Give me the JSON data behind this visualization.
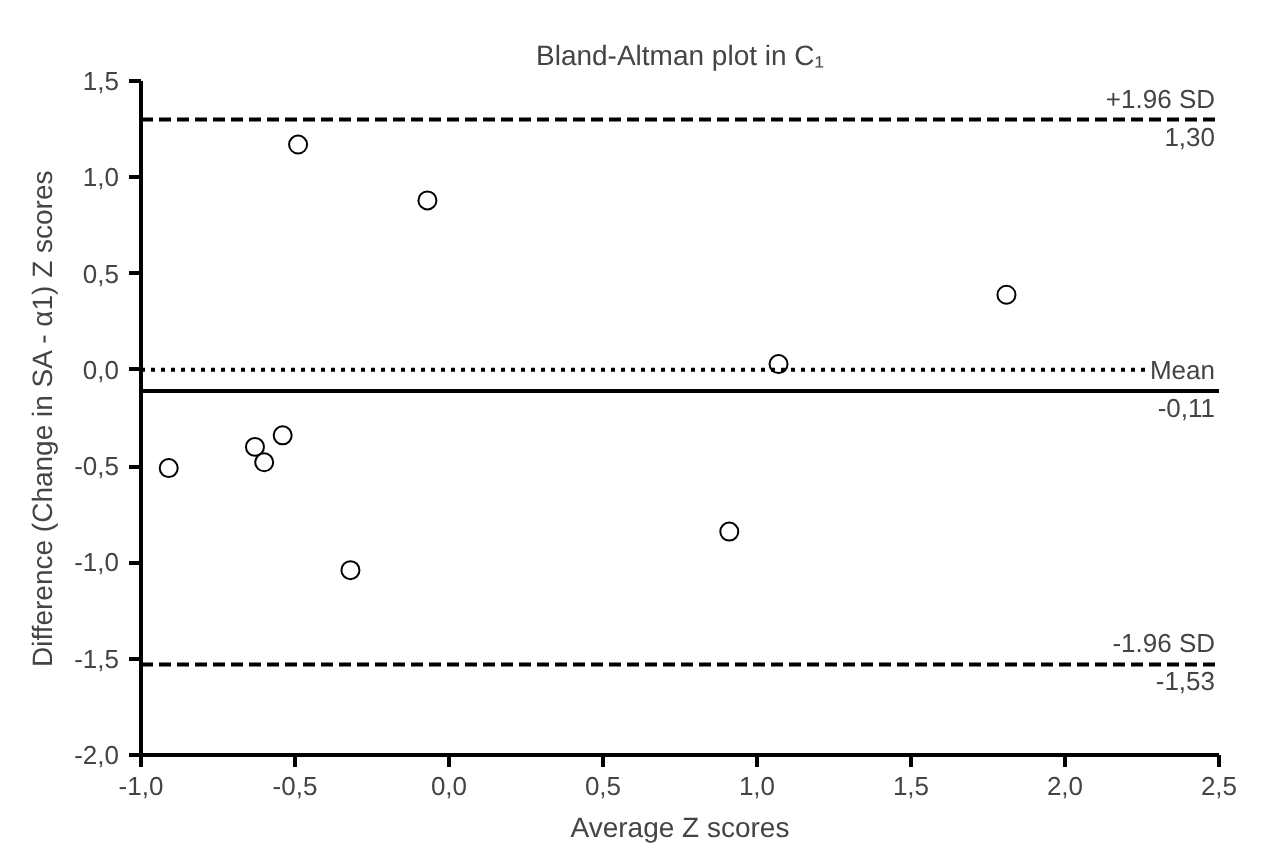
{
  "chart_data": {
    "type": "scatter",
    "title": "Bland-Altman plot in C₁",
    "xlabel": "Average Z scores",
    "ylabel": "Difference (Change in SA - α1) Z scores",
    "x": [
      -0.91,
      -0.63,
      -0.6,
      -0.54,
      -0.49,
      -0.32,
      -0.07,
      0.91,
      1.07,
      1.81
    ],
    "values": [
      -0.51,
      -0.4,
      -0.48,
      -0.34,
      1.17,
      -1.04,
      0.88,
      -0.84,
      0.03,
      0.39
    ],
    "color": "#000000",
    "marker": "circle",
    "grid": false,
    "xlim": [
      -1.0,
      2.5
    ],
    "ylim": [
      -2.0,
      1.5
    ],
    "xticks": [
      {
        "value": -1.0,
        "label": "-1,0"
      },
      {
        "value": -0.5,
        "label": "-0,5"
      },
      {
        "value": 0.0,
        "label": "0,0"
      },
      {
        "value": 0.5,
        "label": "0,5"
      },
      {
        "value": 1.0,
        "label": "1,0"
      },
      {
        "value": 1.5,
        "label": "1,5"
      },
      {
        "value": 2.0,
        "label": "2,0"
      },
      {
        "value": 2.5,
        "label": "2,5"
      }
    ],
    "yticks": [
      {
        "value": -2.0,
        "label": "-2,0"
      },
      {
        "value": -1.5,
        "label": "-1,5"
      },
      {
        "value": -1.0,
        "label": "-1,0"
      },
      {
        "value": -0.5,
        "label": "-0,5"
      },
      {
        "value": 0.0,
        "label": "0,0"
      },
      {
        "value": 0.5,
        "label": "0,5"
      },
      {
        "value": 1.0,
        "label": "1,0"
      },
      {
        "value": 1.5,
        "label": "1,5"
      }
    ],
    "ref_lines": [
      {
        "axis": "y",
        "value": 1.3,
        "label": "+1.96 SD",
        "line_style": "dashed",
        "color": "#000000"
      },
      {
        "axis": "y",
        "value": 0,
        "label": null,
        "line_style": "dotted",
        "color": "#000000"
      },
      {
        "axis": "y",
        "value": -0.11,
        "label": "Mean",
        "line_style": "solid",
        "color": "#000000"
      },
      {
        "axis": "y",
        "value": -1.53,
        "label": "-1.96 SD",
        "line_style": "dashed",
        "color": "#000000"
      }
    ],
    "annotations": [
      {
        "text": "1,30",
        "y": 1.3
      },
      {
        "text": "-0,11",
        "y": -0.11
      },
      {
        "text": "-1,53",
        "y": -1.53
      }
    ]
  }
}
